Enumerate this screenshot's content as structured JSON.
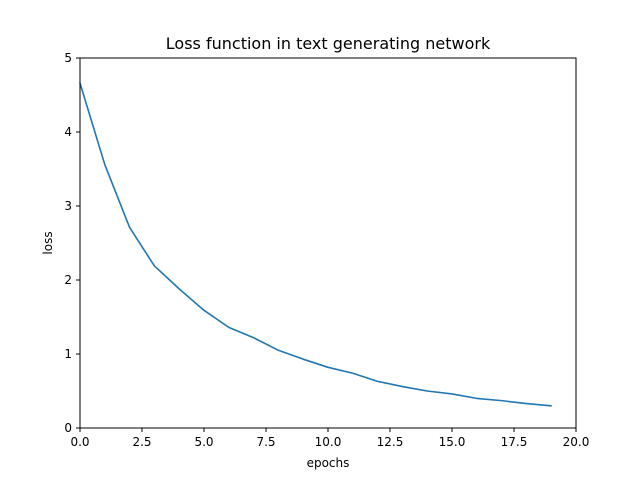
{
  "chart_data": {
    "type": "line",
    "title": "Loss function in text generating network",
    "xlabel": "epochs",
    "ylabel": "loss",
    "xlim": [
      0,
      20
    ],
    "ylim": [
      0,
      5
    ],
    "xticks": [
      "0.0",
      "2.5",
      "5.0",
      "7.5",
      "10.0",
      "12.5",
      "15.0",
      "17.5",
      "20.0"
    ],
    "yticks": [
      "0",
      "1",
      "2",
      "3",
      "4",
      "5"
    ],
    "grid": false,
    "legend": "none",
    "series": [
      {
        "color": "#1f77b4",
        "x": [
          0,
          1,
          2,
          3,
          4,
          5,
          6,
          7,
          8,
          9,
          10,
          11,
          12,
          13,
          14,
          15,
          16,
          17,
          18,
          19
        ],
        "y": [
          4.66,
          3.56,
          2.71,
          2.19,
          1.88,
          1.59,
          1.36,
          1.22,
          1.05,
          0.93,
          0.82,
          0.74,
          0.63,
          0.56,
          0.5,
          0.46,
          0.4,
          0.37,
          0.33,
          0.3
        ]
      }
    ]
  }
}
